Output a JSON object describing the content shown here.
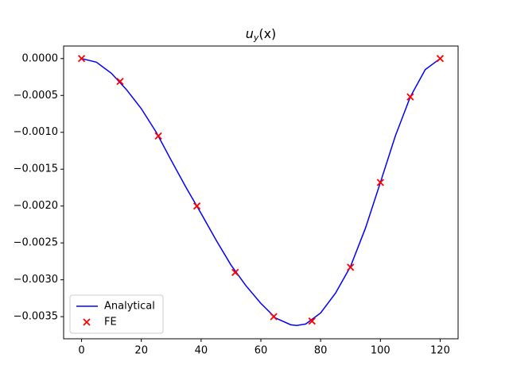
{
  "chart_data": {
    "type": "line",
    "title": [
      "u",
      "y",
      "(x)"
    ],
    "xlim": [
      -6,
      126
    ],
    "ylim": [
      -0.0038,
      0.00017
    ],
    "xticks": [
      0,
      20,
      40,
      60,
      80,
      100,
      120
    ],
    "yticks": [
      {
        "value": 0,
        "label": "0.0000"
      },
      {
        "value": -0.0005,
        "label": "−0.0005"
      },
      {
        "value": -0.001,
        "label": "−0.0010"
      },
      {
        "value": -0.0015,
        "label": "−0.0015"
      },
      {
        "value": -0.002,
        "label": "−0.0020"
      },
      {
        "value": -0.0025,
        "label": "−0.0025"
      },
      {
        "value": -0.003,
        "label": "−0.0030"
      },
      {
        "value": -0.0035,
        "label": "−0.0035"
      }
    ],
    "legend": "lower left",
    "series": [
      {
        "name": "Analytical",
        "type": "line",
        "color": "#0000ff",
        "x": [
          0,
          5,
          10,
          15,
          20,
          25,
          30,
          35,
          40,
          45,
          50,
          55,
          60,
          65,
          70,
          72,
          75,
          80,
          85,
          90,
          95,
          100,
          105,
          110,
          115,
          120
        ],
        "values": [
          0,
          -5e-05,
          -0.0002,
          -0.00042,
          -0.00068,
          -0.001,
          -0.00138,
          -0.00175,
          -0.0021,
          -0.00246,
          -0.0028,
          -0.00308,
          -0.00332,
          -0.00352,
          -0.00361,
          -0.00362,
          -0.0036,
          -0.00345,
          -0.00318,
          -0.00282,
          -0.0023,
          -0.00168,
          -0.00105,
          -0.00052,
          -0.00015,
          0
        ]
      },
      {
        "name": "FE",
        "type": "scatter",
        "color": "#ff0000",
        "x": [
          0,
          12.9,
          25.7,
          38.6,
          51.4,
          64.3,
          77.1,
          90,
          100,
          110,
          120
        ],
        "values": [
          0,
          -0.00031,
          -0.00105,
          -0.002,
          -0.0029,
          -0.0035,
          -0.00356,
          -0.00283,
          -0.00168,
          -0.00052,
          0
        ]
      }
    ]
  }
}
